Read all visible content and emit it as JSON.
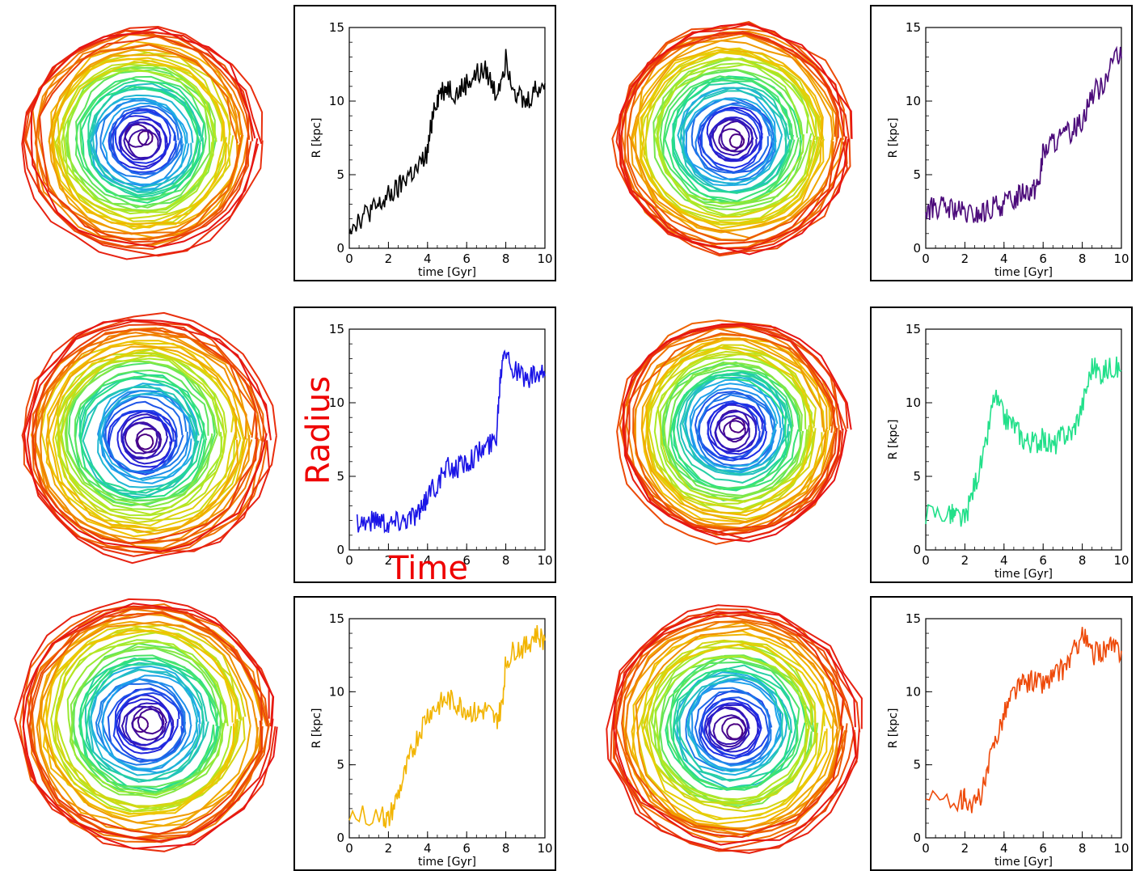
{
  "annotations": {
    "radius": "Radius",
    "time": "Time"
  },
  "chart_data": [
    {
      "type": "line",
      "panel": "top-left",
      "xlabel": "time [Gyr]",
      "ylabel": "R [kpc]",
      "xlim": [
        0,
        10
      ],
      "ylim": [
        0,
        15
      ],
      "xticks": [
        "0",
        "2",
        "4",
        "6",
        "8",
        "10"
      ],
      "yticks": [
        "0",
        "5",
        "10",
        "15"
      ],
      "color": "#000000",
      "series": [
        {
          "x": [
            0,
            0.5,
            1,
            1.5,
            2,
            2.5,
            3,
            3.5,
            4,
            4.3,
            4.6,
            5,
            5.5,
            6,
            6.5,
            7,
            7.5,
            8,
            8.5,
            9,
            9.5,
            10
          ],
          "values": [
            1.5,
            2.0,
            2.5,
            2.8,
            3.5,
            4.0,
            5.0,
            5.3,
            6.5,
            9.5,
            10.5,
            11.0,
            10.5,
            11.2,
            11.8,
            12.0,
            10.5,
            12.8,
            10.8,
            9.8,
            10.8,
            11.2
          ]
        }
      ]
    },
    {
      "type": "line",
      "panel": "top-right",
      "xlabel": "time [Gyr]",
      "ylabel": "R [kpc]",
      "xlim": [
        0,
        10
      ],
      "ylim": [
        0,
        15
      ],
      "xticks": [
        "0",
        "2",
        "4",
        "6",
        "8",
        "10"
      ],
      "yticks": [
        "0",
        "5",
        "10",
        "15"
      ],
      "color": "#4b0a7a",
      "series": [
        {
          "x": [
            0,
            0.5,
            1,
            1.5,
            2,
            2.5,
            3,
            3.5,
            4,
            4.5,
            5,
            5.5,
            5.8,
            6,
            6.5,
            7,
            7.5,
            8,
            8.5,
            9,
            9.5,
            10
          ],
          "values": [
            2.5,
            2.8,
            2.7,
            2.6,
            2.3,
            2.2,
            2.4,
            2.8,
            3.0,
            3.3,
            4.0,
            4.0,
            4.5,
            6.5,
            7.2,
            7.5,
            8.0,
            8.8,
            10.5,
            11.0,
            12.8,
            12.9
          ]
        }
      ]
    },
    {
      "type": "line",
      "panel": "middle-left",
      "xlabel": "",
      "ylabel": "",
      "xlim": [
        0,
        10
      ],
      "ylim": [
        0,
        15
      ],
      "xticks": [
        "0",
        "2",
        "4",
        "6",
        "8",
        "10"
      ],
      "yticks": [
        "0",
        "5",
        "10",
        "15"
      ],
      "color": "#1a14e6",
      "series": [
        {
          "x": [
            0.4,
            1,
            1.5,
            2,
            2.5,
            3,
            3.5,
            3.8,
            4,
            4.5,
            5,
            5.5,
            6,
            6.5,
            7,
            7.5,
            7.7,
            7.9,
            8.3,
            9,
            9.5,
            10
          ],
          "values": [
            2.0,
            1.9,
            2.2,
            1.8,
            2.0,
            2.2,
            2.5,
            2.8,
            3.8,
            4.5,
            5.5,
            5.6,
            6.0,
            6.5,
            7.0,
            7.5,
            11.5,
            14.0,
            12.5,
            11.5,
            11.8,
            11.8
          ]
        }
      ]
    },
    {
      "type": "line",
      "panel": "middle-right",
      "xlabel": "time [Gyr]",
      "ylabel": "R [kpc]",
      "xlim": [
        0,
        10
      ],
      "ylim": [
        0,
        15
      ],
      "xticks": [
        "0",
        "2",
        "4",
        "6",
        "8",
        "10"
      ],
      "yticks": [
        "0",
        "5",
        "10",
        "15"
      ],
      "color": "#22e08a",
      "series": [
        {
          "x": [
            0,
            1.2,
            1.5,
            2,
            2.5,
            3,
            3.5,
            4,
            4.5,
            5,
            5.5,
            6,
            6.5,
            7,
            7.5,
            8,
            8.5,
            9,
            9.5,
            10
          ],
          "values": [
            2.5,
            2.5,
            2.3,
            2.0,
            4.5,
            6.5,
            10.5,
            9.0,
            8.5,
            7.5,
            7.3,
            7.5,
            7.0,
            7.8,
            8.0,
            9.8,
            12.5,
            12.0,
            12.5,
            12.2
          ]
        }
      ]
    },
    {
      "type": "line",
      "panel": "bottom-left",
      "xlabel": "time [Gyr]",
      "ylabel": "R [kpc]",
      "xlim": [
        0,
        10
      ],
      "ylim": [
        0,
        15
      ],
      "xticks": [
        "0",
        "2",
        "4",
        "6",
        "8",
        "10"
      ],
      "yticks": [
        "0",
        "5",
        "10",
        "15"
      ],
      "color": "#f2b400",
      "series": [
        {
          "x": [
            0,
            1.7,
            2,
            2.5,
            3,
            3.5,
            4,
            4.5,
            5,
            5.5,
            6,
            6.5,
            7,
            7.5,
            7.8,
            8,
            8.5,
            9,
            9.5,
            10
          ],
          "values": [
            1.5,
            1.5,
            1.2,
            3.0,
            5.0,
            7.0,
            8.5,
            9.0,
            9.5,
            9.2,
            8.8,
            8.5,
            8.8,
            8.0,
            9.0,
            12.0,
            13.0,
            13.0,
            14.0,
            13.5
          ]
        }
      ]
    },
    {
      "type": "line",
      "panel": "bottom-right",
      "xlabel": "time [Gyr]",
      "ylabel": "R [kpc]",
      "xlim": [
        0,
        10
      ],
      "ylim": [
        0,
        15
      ],
      "xticks": [
        "0",
        "2",
        "4",
        "6",
        "8",
        "10"
      ],
      "yticks": [
        "0",
        "5",
        "10",
        "15"
      ],
      "color": "#ee4a0a",
      "series": [
        {
          "x": [
            0,
            1.8,
            2,
            2.5,
            3,
            3.5,
            4,
            4.5,
            5,
            5.5,
            6,
            6.5,
            7,
            7.5,
            8,
            8.5,
            9,
            9.5,
            10
          ],
          "values": [
            2.5,
            2.5,
            2.8,
            2.2,
            3.5,
            6.5,
            8.5,
            10.0,
            10.5,
            10.8,
            10.5,
            11.0,
            11.5,
            12.5,
            14.0,
            12.5,
            12.8,
            13.0,
            12.8
          ]
        }
      ]
    }
  ]
}
